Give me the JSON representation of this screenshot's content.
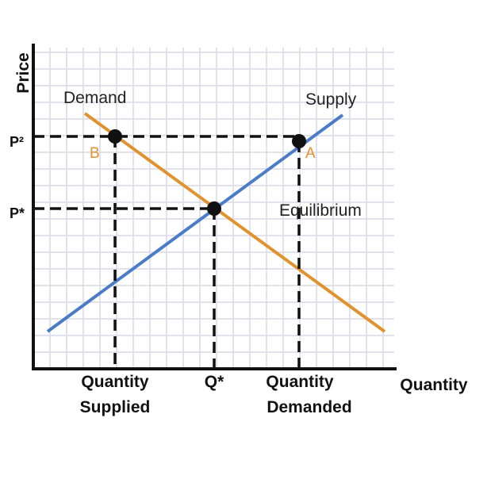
{
  "axes": {
    "y_label": "Price",
    "x_label": "Quantity"
  },
  "curves": {
    "demand": "Demand",
    "supply": "Supply"
  },
  "price_labels": {
    "p2": "P²",
    "p_star": "P*"
  },
  "points": {
    "b": "B",
    "a": "A",
    "equilibrium": "Equilibrium"
  },
  "quantity_labels": {
    "supplied": [
      "Quantity",
      "Supplied"
    ],
    "q_star": "Q*",
    "demanded": [
      "Quantity",
      "Demanded"
    ]
  }
}
